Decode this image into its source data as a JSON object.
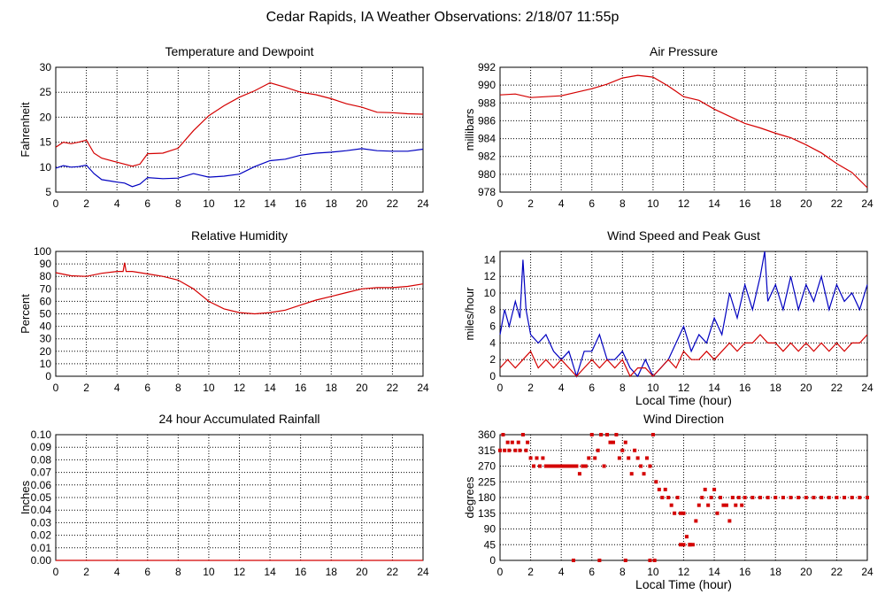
{
  "page_title": "Cedar Rapids, IA Weather Observations: 2/18/07 11:55p",
  "colors": {
    "red": "#d40000",
    "blue": "#0000c0",
    "grid": "#000000"
  },
  "chart_data": [
    {
      "id": "temp",
      "type": "line",
      "title": "Temperature and Dewpoint",
      "xlabel": "",
      "ylabel": "Fahrenheit",
      "xlim": [
        0,
        24
      ],
      "ylim": [
        5,
        30
      ],
      "xticks": [
        0,
        2,
        4,
        6,
        8,
        10,
        12,
        14,
        16,
        18,
        20,
        22,
        24
      ],
      "yticks": [
        5,
        10,
        15,
        20,
        25,
        30
      ],
      "grid": true,
      "series": [
        {
          "name": "",
          "color": "red",
          "x": [
            0,
            0.5,
            1,
            1.5,
            2,
            2.5,
            3,
            4,
            5,
            5.5,
            6,
            7,
            8,
            9,
            10,
            11,
            12,
            13,
            14,
            15,
            16,
            17,
            18,
            19,
            20,
            21,
            22,
            23,
            24
          ],
          "y": [
            14,
            15,
            14.7,
            15,
            15.4,
            12.8,
            11.8,
            11,
            10.2,
            10.6,
            12.7,
            12.8,
            13.8,
            17.3,
            20.3,
            22.3,
            24,
            25.3,
            26.9,
            26,
            25,
            24.5,
            23.7,
            22.7,
            22,
            21,
            20.9,
            20.7,
            20.6
          ]
        },
        {
          "name": "",
          "color": "blue",
          "x": [
            0,
            0.5,
            1,
            1.5,
            2,
            2.5,
            3,
            4,
            4.5,
            5,
            5.5,
            6,
            7,
            8,
            9,
            10,
            11,
            12,
            13,
            14,
            15,
            16,
            17,
            18,
            19,
            20,
            21,
            22,
            23,
            24
          ],
          "y": [
            9.8,
            10.3,
            10,
            10.1,
            10.4,
            8.7,
            7.5,
            7,
            6.8,
            6.1,
            6.6,
            7.9,
            7.7,
            7.8,
            8.7,
            8,
            8.2,
            8.6,
            10.1,
            11.3,
            11.6,
            12.4,
            12.8,
            13,
            13.3,
            13.7,
            13.3,
            13.2,
            13.2,
            13.6
          ]
        }
      ]
    },
    {
      "id": "pressure",
      "type": "line",
      "title": "Air Pressure",
      "xlabel": "",
      "ylabel": "millibars",
      "xlim": [
        0,
        24
      ],
      "ylim": [
        978,
        992
      ],
      "xticks": [
        0,
        2,
        4,
        6,
        8,
        10,
        12,
        14,
        16,
        18,
        20,
        22,
        24
      ],
      "yticks": [
        978,
        980,
        982,
        984,
        986,
        988,
        990,
        992
      ],
      "grid": true,
      "series": [
        {
          "name": "",
          "color": "red",
          "x": [
            0,
            1,
            2,
            3,
            4,
            5,
            6,
            7,
            8,
            9,
            10,
            11,
            12,
            13,
            14,
            15,
            16,
            17,
            18,
            19,
            20,
            21,
            22,
            23,
            24
          ],
          "y": [
            988.9,
            989,
            988.6,
            988.7,
            988.8,
            989.2,
            989.6,
            990.1,
            990.8,
            991.1,
            990.9,
            989.9,
            988.7,
            988.3,
            987.3,
            986.5,
            985.7,
            985.2,
            984.6,
            984.1,
            983.3,
            982.4,
            981.2,
            980.2,
            978.5
          ]
        }
      ]
    },
    {
      "id": "humidity",
      "type": "line",
      "title": "Relative Humidity",
      "xlabel": "",
      "ylabel": "Percent",
      "xlim": [
        0,
        24
      ],
      "ylim": [
        0,
        100
      ],
      "xticks": [
        0,
        2,
        4,
        6,
        8,
        10,
        12,
        14,
        16,
        18,
        20,
        22,
        24
      ],
      "yticks": [
        0,
        10,
        20,
        30,
        40,
        50,
        60,
        70,
        80,
        90,
        100
      ],
      "grid": true,
      "series": [
        {
          "name": "",
          "color": "red",
          "x": [
            0,
            1,
            2,
            3,
            4,
            4.4,
            4.5,
            4.6,
            5,
            6,
            7,
            8,
            9,
            10,
            11,
            12,
            13,
            14,
            15,
            16,
            17,
            18,
            19,
            20,
            21,
            22,
            23,
            24
          ],
          "y": [
            83,
            80.5,
            80,
            82.5,
            84,
            84,
            91,
            84,
            84,
            82,
            80,
            77,
            70,
            60,
            54,
            51,
            50,
            51,
            53,
            57,
            61,
            64,
            67,
            70,
            71,
            71,
            72,
            74
          ]
        }
      ]
    },
    {
      "id": "wind",
      "type": "line",
      "title": "Wind Speed and Peak Gust",
      "xlabel": "Local Time (hour)",
      "ylabel": "miles/hour",
      "xlim": [
        0,
        24
      ],
      "ylim": [
        0,
        15
      ],
      "xticks": [
        0,
        2,
        4,
        6,
        8,
        10,
        12,
        14,
        16,
        18,
        20,
        22,
        24
      ],
      "yticks": [
        0,
        2,
        4,
        6,
        8,
        10,
        12,
        14
      ],
      "grid": true,
      "series": [
        {
          "name": "",
          "color": "blue",
          "x": [
            0,
            0.3,
            0.6,
            1,
            1.3,
            1.5,
            1.7,
            2,
            2.5,
            3,
            3.5,
            4,
            4.5,
            5,
            5.5,
            6,
            6.5,
            7,
            7.5,
            8,
            8.5,
            9,
            9.5,
            10,
            10.5,
            11,
            11.5,
            12,
            12.5,
            13,
            13.5,
            14,
            14.5,
            15,
            15.5,
            16,
            16.5,
            17,
            17.3,
            17.5,
            18,
            18.5,
            19,
            19.5,
            20,
            20.5,
            21,
            21.5,
            22,
            22.5,
            23,
            23.5,
            24
          ],
          "y": [
            5,
            8,
            6,
            9,
            7,
            14,
            8,
            5,
            4,
            5,
            3,
            2,
            3,
            0,
            3,
            3,
            5,
            2,
            2,
            3,
            1,
            0,
            2,
            0,
            1,
            2,
            4,
            6,
            3,
            5,
            4,
            7,
            5,
            10,
            7,
            11,
            8,
            12,
            15,
            9,
            11,
            8,
            12,
            8,
            11,
            9,
            12,
            8,
            11,
            9,
            10,
            8,
            11
          ]
        },
        {
          "name": "",
          "color": "red",
          "x": [
            0,
            0.5,
            1,
            1.5,
            2,
            2.5,
            3,
            3.5,
            4,
            4.5,
            5,
            5.5,
            6,
            6.5,
            7,
            7.5,
            8,
            8.5,
            9,
            9.5,
            10,
            10.5,
            11,
            11.5,
            12,
            12.5,
            13,
            13.5,
            14,
            14.5,
            15,
            15.5,
            16,
            16.5,
            17,
            17.5,
            18,
            18.5,
            19,
            19.5,
            20,
            20.5,
            21,
            21.5,
            22,
            22.5,
            23,
            23.5,
            24
          ],
          "y": [
            1,
            2,
            1,
            2,
            3,
            1,
            2,
            1,
            2,
            1,
            0,
            1,
            2,
            1,
            2,
            1,
            2,
            0,
            1,
            1,
            0,
            1,
            2,
            1,
            3,
            2,
            2,
            3,
            2,
            3,
            4,
            3,
            4,
            4,
            5,
            4,
            4,
            3,
            4,
            3,
            4,
            3,
            4,
            3,
            4,
            3,
            4,
            4,
            5
          ]
        }
      ]
    },
    {
      "id": "rain",
      "type": "line",
      "title": "24 hour Accumulated Rainfall",
      "xlabel": "",
      "ylabel": "Inches",
      "xlim": [
        0,
        24
      ],
      "ylim": [
        0,
        0.1
      ],
      "xticks": [
        0,
        2,
        4,
        6,
        8,
        10,
        12,
        14,
        16,
        18,
        20,
        22,
        24
      ],
      "yticks": [
        "0.00",
        "0.01",
        "0.02",
        "0.03",
        "0.04",
        "0.05",
        "0.06",
        "0.07",
        "0.08",
        "0.09",
        "0.10"
      ],
      "grid": true,
      "series": [
        {
          "name": "",
          "color": "red",
          "x": [
            0,
            24
          ],
          "y": [
            0,
            0
          ]
        }
      ]
    },
    {
      "id": "direction",
      "type": "scatter",
      "title": "Wind Direction",
      "xlabel": "Local Time (hour)",
      "ylabel": "degrees",
      "xlim": [
        0,
        24
      ],
      "ylim": [
        0,
        360
      ],
      "xticks": [
        0,
        2,
        4,
        6,
        8,
        10,
        12,
        14,
        16,
        18,
        20,
        22,
        24
      ],
      "yticks": [
        0,
        45,
        90,
        135,
        180,
        225,
        270,
        315,
        360
      ],
      "grid": true,
      "series": [
        {
          "name": "",
          "color": "red",
          "x": [
            0,
            0.2,
            0.3,
            0.5,
            0.6,
            0.8,
            1,
            1.2,
            1.3,
            1.5,
            1.7,
            1.8,
            2,
            2.2,
            2.4,
            2.6,
            2.8,
            3,
            3.2,
            3.4,
            3.6,
            3.8,
            4,
            4.2,
            4.4,
            4.6,
            4.8,
            5,
            5.2,
            5.4,
            5.6,
            5.8,
            6,
            6.2,
            6.4,
            6.6,
            6.8,
            7,
            7.2,
            7.4,
            7.6,
            7.8,
            8,
            8.2,
            8.4,
            8.6,
            8.8,
            9,
            9.2,
            9.4,
            9.6,
            9.8,
            10,
            10.2,
            10.4,
            10.6,
            10.8,
            11,
            11.2,
            11.4,
            11.6,
            11.8,
            12,
            12.2,
            12.4,
            12.6,
            12.8,
            13,
            13.2,
            13.4,
            13.6,
            13.8,
            14,
            14.2,
            14.4,
            14.6,
            14.8,
            15,
            15.2,
            15.4,
            15.6,
            15.8,
            16,
            16.5,
            17,
            17.5,
            18,
            18.5,
            19,
            19.5,
            20,
            20.5,
            21,
            21.5,
            22,
            22.5,
            23,
            23.5,
            24,
            4.8,
            6.5,
            8.2,
            9.8,
            10.1,
            11.8,
            12,
            12.4
          ],
          "y": [
            315,
            360,
            315,
            338,
            315,
            338,
            315,
            338,
            315,
            360,
            315,
            338,
            293,
            270,
            293,
            270,
            293,
            270,
            270,
            270,
            270,
            270,
            270,
            270,
            270,
            270,
            270,
            270,
            248,
            270,
            270,
            293,
            360,
            293,
            315,
            360,
            270,
            360,
            338,
            338,
            360,
            293,
            315,
            338,
            293,
            248,
            315,
            293,
            270,
            248,
            293,
            270,
            360,
            225,
            203,
            180,
            203,
            180,
            158,
            135,
            180,
            135,
            135,
            68,
            45,
            45,
            113,
            158,
            180,
            203,
            158,
            180,
            203,
            135,
            180,
            158,
            158,
            113,
            180,
            158,
            180,
            158,
            180,
            180,
            180,
            180,
            180,
            180,
            180,
            180,
            180,
            180,
            180,
            180,
            180,
            180,
            180,
            180,
            180,
            0,
            0,
            0,
            0,
            0,
            45,
            45,
            45
          ]
        }
      ]
    }
  ]
}
